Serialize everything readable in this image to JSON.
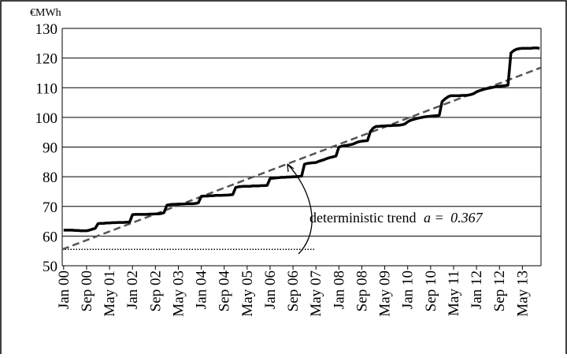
{
  "chart_data": {
    "type": "line",
    "y_label": "€MWh",
    "x": [
      "Jan 00",
      null,
      null,
      null,
      null,
      null,
      null,
      null,
      "Sep 00",
      null,
      null,
      null,
      null,
      null,
      null,
      null,
      "May 01",
      null,
      null,
      null,
      null,
      null,
      null,
      null,
      "Jan 02",
      null,
      null,
      null,
      null,
      null,
      null,
      null,
      "Sep 02",
      null,
      null,
      null,
      null,
      null,
      null,
      null,
      "May 03",
      null,
      null,
      null,
      null,
      null,
      null,
      null,
      "Jan 04",
      null,
      null,
      null,
      null,
      null,
      null,
      null,
      "Sep 04",
      null,
      null,
      null,
      null,
      null,
      null,
      null,
      "May 05",
      null,
      null,
      null,
      null,
      null,
      null,
      null,
      "Jan 06",
      null,
      null,
      null,
      null,
      null,
      null,
      null,
      "Sep 06",
      null,
      null,
      null,
      null,
      null,
      null,
      null,
      "May 07",
      null,
      null,
      null,
      null,
      null,
      null,
      null,
      "Jan 08",
      null,
      null,
      null,
      null,
      null,
      null,
      null,
      "Sep 08",
      null,
      null,
      null,
      null,
      null,
      null,
      null,
      "May 09",
      null,
      null,
      null,
      null,
      null,
      null,
      null,
      "Jan 10",
      null,
      null,
      null,
      null,
      null,
      null,
      null,
      "Sep 10",
      null,
      null,
      null,
      null,
      null,
      null,
      null,
      "May 11",
      null,
      null,
      null,
      null,
      null,
      null,
      null,
      "Jan 12",
      null,
      null,
      null,
      null,
      null,
      null,
      null,
      "Sep 12",
      null,
      null,
      null,
      null,
      null,
      null,
      null,
      "May 13",
      null,
      null,
      null,
      null,
      null,
      null
    ],
    "series": [
      {
        "color": "#000000",
        "values": [
          62,
          62,
          62,
          62,
          61.9,
          61.9,
          61.8,
          61.8,
          61.8,
          62,
          62.3,
          62.6,
          64.2,
          64.3,
          64.3,
          64.4,
          64.4,
          64.5,
          64.5,
          64.6,
          64.6,
          64.6,
          64.7,
          64.7,
          67.2,
          67.3,
          67.3,
          67.3,
          67.3,
          67.3,
          67.4,
          67.4,
          67.5,
          67.5,
          67.6,
          67.9,
          70.4,
          70.6,
          70.7,
          70.7,
          70.8,
          70.8,
          70.8,
          70.9,
          70.9,
          70.9,
          71,
          71.2,
          73.4,
          73.5,
          73.5,
          73.6,
          73.6,
          73.7,
          73.7,
          73.7,
          73.8,
          73.8,
          73.9,
          74,
          76.4,
          76.6,
          76.7,
          76.8,
          76.8,
          76.8,
          76.9,
          76.9,
          76.9,
          77,
          77,
          77.1,
          79.4,
          79.5,
          79.6,
          79.7,
          79.8,
          79.8,
          79.9,
          79.9,
          80,
          80,
          80.1,
          80.2,
          84.2,
          84.5,
          84.6,
          84.7,
          84.8,
          85.2,
          85.5,
          85.8,
          86.2,
          86.5,
          86.7,
          87,
          90,
          90.3,
          90.5,
          90.6,
          90.8,
          91,
          91.5,
          91.8,
          92,
          92.1,
          92.2,
          95.3,
          96.4,
          97,
          97,
          97.1,
          97.1,
          97.2,
          97.2,
          97.3,
          97.3,
          97.4,
          97.5,
          97.8,
          98.5,
          99,
          99.3,
          99.6,
          99.8,
          100,
          100.2,
          100.3,
          100.4,
          100.5,
          100.6,
          100.7,
          105.3,
          106.2,
          106.9,
          107.3,
          107.3,
          107.3,
          107.3,
          107.4,
          107.4,
          107.5,
          107.7,
          108,
          108.6,
          109,
          109.3,
          109.6,
          109.8,
          110,
          110.2,
          110.4,
          110.5,
          110.6,
          110.7,
          110.9,
          121.7,
          122.5,
          123,
          123.2,
          123.3,
          123.3,
          123.3,
          123.3,
          123.4,
          123.4,
          123.3
        ]
      }
    ],
    "trend": {
      "label": "deterministic trend ",
      "slope_label": "a = ",
      "slope": 0.367,
      "intercept": 55.5,
      "color": "#555555"
    },
    "ylim": [
      50,
      130
    ],
    "yticks": [
      50,
      60,
      70,
      80,
      90,
      100,
      110,
      120,
      130
    ],
    "grid": true
  }
}
